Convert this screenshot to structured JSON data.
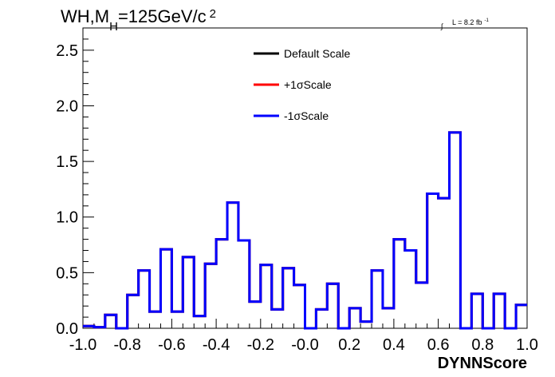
{
  "chart_data": {
    "type": "line",
    "title": {
      "prefix": "WH,M",
      "subscript": "H",
      "suffix": "=125GeV/c",
      "superscript": "2"
    },
    "luminosity": {
      "integral_symbol": "∫",
      "label": "L = 8.2 fb",
      "superscript": "-1"
    },
    "xlabel": "DYNNScore",
    "ylabel": "",
    "xlim": [
      -1.0,
      1.0
    ],
    "ylim": [
      0,
      2.7
    ],
    "x_ticks": [
      {
        "value": -1.0,
        "label": "-1.0"
      },
      {
        "value": -0.8,
        "label": "-0.8"
      },
      {
        "value": -0.6,
        "label": "-0.6"
      },
      {
        "value": -0.4,
        "label": "-0.4"
      },
      {
        "value": -0.2,
        "label": "-0.2"
      },
      {
        "value": 0.0,
        "label": "-0.0"
      },
      {
        "value": 0.2,
        "label": "0.2"
      },
      {
        "value": 0.4,
        "label": "0.4"
      },
      {
        "value": 0.6,
        "label": "0.6"
      },
      {
        "value": 0.8,
        "label": "0.8"
      },
      {
        "value": 1.0,
        "label": "1.0"
      }
    ],
    "y_ticks": [
      {
        "value": 0.0,
        "label": "0.0"
      },
      {
        "value": 0.5,
        "label": "0.5"
      },
      {
        "value": 1.0,
        "label": "1.0"
      },
      {
        "value": 1.5,
        "label": "1.5"
      },
      {
        "value": 2.0,
        "label": "2.0"
      },
      {
        "value": 2.5,
        "label": "2.5"
      }
    ],
    "bin_edges": [
      -1.0,
      -0.95,
      -0.9,
      -0.85,
      -0.8,
      -0.75,
      -0.7,
      -0.65,
      -0.6,
      -0.55,
      -0.5,
      -0.45,
      -0.4,
      -0.35,
      -0.3,
      -0.25,
      -0.2,
      -0.15,
      -0.1,
      -0.05,
      0.0,
      0.05,
      0.1,
      0.15,
      0.2,
      0.25,
      0.3,
      0.35,
      0.4,
      0.45,
      0.5,
      0.55,
      0.6,
      0.65,
      0.7,
      0.75,
      0.8,
      0.85,
      0.9,
      0.95,
      1.0
    ],
    "series": [
      {
        "name": "Default Scale",
        "color": "#000000",
        "values": [
          0.02,
          0.01,
          0.12,
          0.0,
          0.3,
          0.52,
          0.15,
          0.71,
          0.15,
          0.64,
          0.11,
          0.58,
          0.8,
          1.13,
          0.79,
          0.24,
          0.57,
          0.17,
          0.54,
          0.39,
          0.0,
          0.17,
          0.4,
          0.0,
          0.18,
          0.06,
          0.52,
          0.18,
          0.8,
          0.7,
          0.41,
          1.21,
          1.17,
          1.76,
          0.0,
          0.31,
          0.0,
          0.31,
          0.0,
          0.21
        ]
      },
      {
        "name": "+1σScale",
        "color": "#ff0000",
        "values": [
          0.02,
          0.01,
          0.12,
          0.0,
          0.3,
          0.52,
          0.15,
          0.71,
          0.15,
          0.64,
          0.11,
          0.58,
          0.8,
          1.13,
          0.79,
          0.24,
          0.57,
          0.17,
          0.54,
          0.39,
          0.0,
          0.17,
          0.4,
          0.0,
          0.18,
          0.06,
          0.52,
          0.18,
          0.8,
          0.7,
          0.41,
          1.21,
          1.17,
          1.76,
          0.0,
          0.31,
          0.0,
          0.31,
          0.0,
          0.21
        ]
      },
      {
        "name": "-1σScale",
        "color": "#0000ff",
        "values": [
          0.02,
          0.01,
          0.12,
          0.0,
          0.3,
          0.52,
          0.15,
          0.71,
          0.15,
          0.64,
          0.11,
          0.58,
          0.8,
          1.13,
          0.79,
          0.24,
          0.57,
          0.17,
          0.54,
          0.39,
          0.0,
          0.17,
          0.4,
          0.0,
          0.18,
          0.06,
          0.52,
          0.18,
          0.8,
          0.7,
          0.41,
          1.21,
          1.17,
          1.76,
          0.0,
          0.31,
          0.0,
          0.31,
          0.0,
          0.21
        ]
      }
    ],
    "legend_position": "top-center",
    "grid": false
  }
}
